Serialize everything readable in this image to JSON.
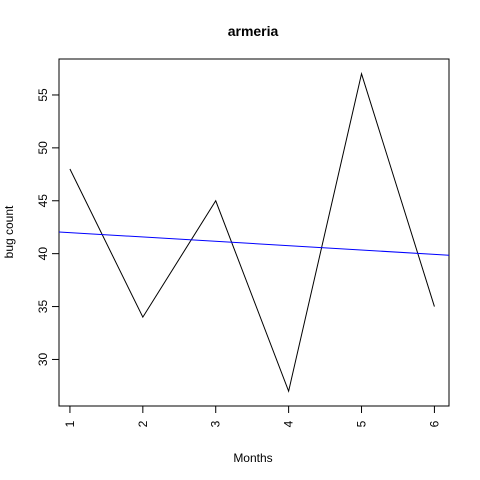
{
  "chart_data": {
    "type": "line",
    "title": "armeria",
    "xlabel": "Months",
    "ylabel": "bug count",
    "x": [
      1,
      2,
      3,
      4,
      5,
      6
    ],
    "series": [
      {
        "values": [
          48,
          34,
          45,
          27,
          57,
          35
        ],
        "color": "#000000"
      }
    ],
    "trend_line": {
      "color": "#0000ff",
      "y_at_x_start": 42.05,
      "y_at_x_end": 39.85,
      "x_start": 0.85,
      "x_end": 6.2
    },
    "xlim": [
      0.85,
      6.2
    ],
    "ylim": [
      25.6,
      58.4
    ],
    "x_ticks": [
      "1",
      "2",
      "3",
      "4",
      "5",
      "6"
    ],
    "y_ticks": [
      "30",
      "35",
      "40",
      "45",
      "50",
      "55"
    ],
    "grid": false
  }
}
